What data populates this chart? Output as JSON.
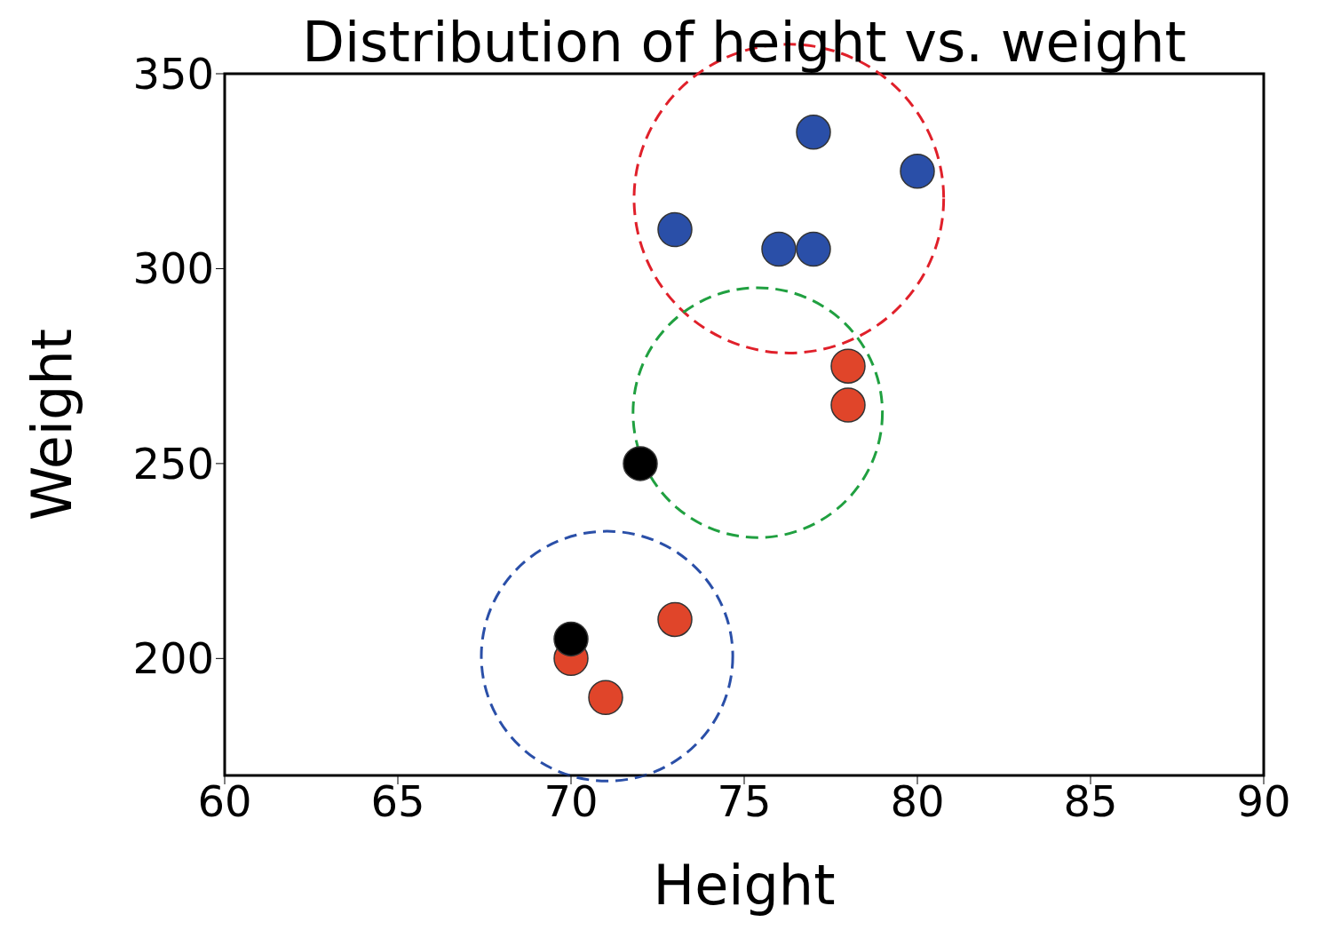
{
  "chart_data": {
    "type": "scatter",
    "title": "Distribution of height vs. weight",
    "xlabel": "Height",
    "ylabel": "Weight",
    "xlim": [
      60,
      90
    ],
    "xticks": [
      60,
      65,
      70,
      75,
      80,
      85,
      90
    ],
    "ylim": [
      170,
      350
    ],
    "yticks": [
      200,
      250,
      300,
      350
    ],
    "marker": "circle",
    "series": [
      {
        "color": "#2a4fa8",
        "x": [
          77,
          80,
          73,
          76,
          77
        ],
        "values": [
          335,
          325,
          310,
          305,
          305
        ]
      },
      {
        "color": "#e0452a",
        "x": [
          78,
          78,
          73,
          70,
          71
        ],
        "values": [
          275,
          265,
          210,
          200,
          190
        ]
      },
      {
        "color": "#000000",
        "x": [
          72,
          70
        ],
        "values": [
          250,
          205
        ]
      }
    ]
  }
}
